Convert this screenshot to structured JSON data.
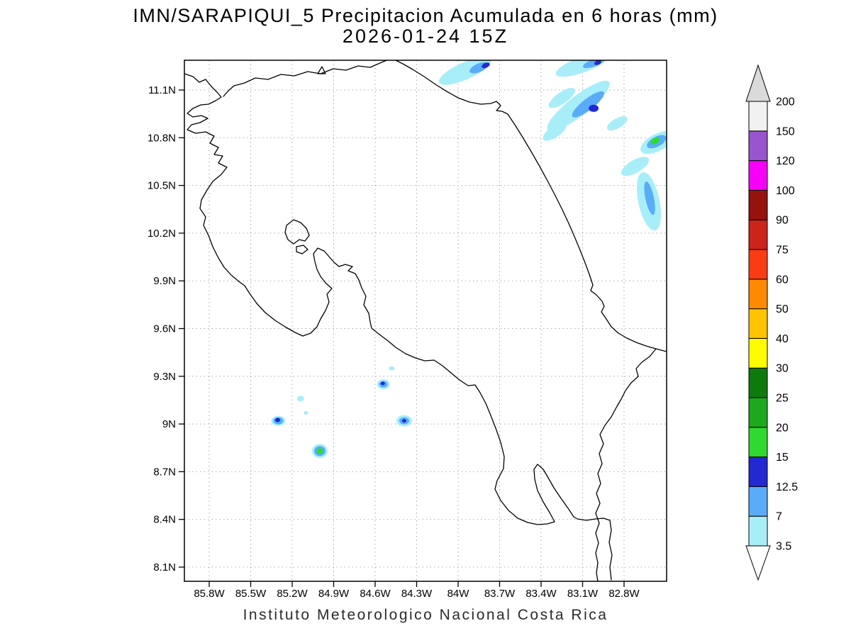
{
  "footer": "Instituto Meteorologico Nacional Costa Rica",
  "chart_data": {
    "type": "heatmap",
    "title": "IMN/SARAPIQUI_5 Precipitacion Acumulada en 6 horas (mm)",
    "subtitle": "2026-01-24 15Z",
    "unit": "mm",
    "grid": true,
    "legend_position": "right",
    "x_ticks": [
      "85.8W",
      "85.5W",
      "85.2W",
      "84.9W",
      "84.6W",
      "84.3W",
      "84W",
      "83.7W",
      "83.4W",
      "83.1W",
      "82.8W"
    ],
    "y_ticks": [
      "11.1N",
      "10.8N",
      "10.5N",
      "10.2N",
      "9.9N",
      "9.6N",
      "9.3N",
      "9N",
      "8.7N",
      "8.4N",
      "8.1N"
    ],
    "colorbar": {
      "values": [
        "3.5",
        "7",
        "12.5",
        "15",
        "20",
        "25",
        "30",
        "40",
        "50",
        "60",
        "75",
        "90",
        "100",
        "120",
        "150",
        "200"
      ],
      "segment_colors": [
        "#A8EEF8",
        "#58ACF8",
        "#2228D2",
        "#2FD92F",
        "#1EA81E",
        "#0E7A0E",
        "#FFFB00",
        "#FFC400",
        "#FF8A00",
        "#FA3C14",
        "#CC231A",
        "#96120E",
        "#F800F8",
        "#9955CE",
        "#F1F1F1"
      ],
      "above_color": "#DADADA",
      "below_color": "#FFFFFF"
    },
    "cells": [
      {
        "lat": 11.22,
        "lon_w": 83.95,
        "rx": 40,
        "ry": 12,
        "rot": -24,
        "level": 0
      },
      {
        "lat": 11.24,
        "lon_w": 83.85,
        "rx": 14,
        "ry": 6,
        "rot": -24,
        "level": 1
      },
      {
        "lat": 11.255,
        "lon_w": 83.8,
        "rx": 6,
        "ry": 3.5,
        "rot": -24,
        "level": 2
      },
      {
        "lat": 11.26,
        "lon_w": 83.1,
        "rx": 40,
        "ry": 11,
        "rot": -20,
        "level": 0
      },
      {
        "lat": 11.27,
        "lon_w": 83.02,
        "rx": 16,
        "ry": 5,
        "rot": -20,
        "level": 1
      },
      {
        "lat": 11.272,
        "lon_w": 82.99,
        "rx": 5,
        "ry": 3,
        "rot": -20,
        "level": 2
      },
      {
        "lat": 11.05,
        "lon_w": 83.25,
        "rx": 22,
        "ry": 8,
        "rot": -35,
        "level": 0
      },
      {
        "lat": 11.0,
        "lon_w": 83.13,
        "rx": 55,
        "ry": 14,
        "rot": -38,
        "level": 0
      },
      {
        "lat": 11.01,
        "lon_w": 83.06,
        "rx": 28,
        "ry": 8,
        "rot": -38,
        "level": 1
      },
      {
        "lat": 10.985,
        "lon_w": 83.02,
        "rx": 7,
        "ry": 5,
        "rot": 0,
        "level": 2
      },
      {
        "lat": 10.84,
        "lon_w": 83.3,
        "rx": 20,
        "ry": 8,
        "rot": -35,
        "level": 0
      },
      {
        "lat": 10.89,
        "lon_w": 82.85,
        "rx": 16,
        "ry": 7,
        "rot": -30,
        "level": 0
      },
      {
        "lat": 10.77,
        "lon_w": 82.56,
        "rx": 26,
        "ry": 12,
        "rot": -28,
        "level": 0
      },
      {
        "lat": 10.775,
        "lon_w": 82.565,
        "rx": 15,
        "ry": 7,
        "rot": -28,
        "level": 1
      },
      {
        "lat": 10.78,
        "lon_w": 82.575,
        "rx": 7,
        "ry": 4,
        "rot": -28,
        "level": 3
      },
      {
        "lat": 10.62,
        "lon_w": 82.72,
        "rx": 22,
        "ry": 9,
        "rot": -30,
        "level": 0
      },
      {
        "lat": 10.4,
        "lon_w": 82.62,
        "rx": 15,
        "ry": 42,
        "rot": -12,
        "level": 0
      },
      {
        "lat": 10.42,
        "lon_w": 82.615,
        "rx": 6,
        "ry": 24,
        "rot": -12,
        "level": 1
      },
      {
        "lat": 9.02,
        "lon_w": 85.3,
        "rx": 10,
        "ry": 7,
        "rot": 0,
        "level": 0
      },
      {
        "lat": 9.02,
        "lon_w": 85.3,
        "rx": 7,
        "ry": 5,
        "rot": 0,
        "level": 1
      },
      {
        "lat": 9.025,
        "lon_w": 85.305,
        "rx": 3.5,
        "ry": 3,
        "rot": 0,
        "level": 2
      },
      {
        "lat": 9.16,
        "lon_w": 85.14,
        "rx": 5,
        "ry": 4,
        "rot": 0,
        "level": 0
      },
      {
        "lat": 9.07,
        "lon_w": 85.1,
        "rx": 3,
        "ry": 2.5,
        "rot": 0,
        "level": 0
      },
      {
        "lat": 9.25,
        "lon_w": 84.54,
        "rx": 9,
        "ry": 7,
        "rot": 0,
        "level": 0
      },
      {
        "lat": 9.25,
        "lon_w": 84.54,
        "rx": 6,
        "ry": 4.5,
        "rot": 0,
        "level": 1
      },
      {
        "lat": 9.255,
        "lon_w": 84.545,
        "rx": 3,
        "ry": 2.5,
        "rot": 0,
        "level": 2
      },
      {
        "lat": 9.35,
        "lon_w": 84.48,
        "rx": 4,
        "ry": 3,
        "rot": 0,
        "level": 0
      },
      {
        "lat": 9.02,
        "lon_w": 84.39,
        "rx": 11,
        "ry": 8,
        "rot": 0,
        "level": 0
      },
      {
        "lat": 9.02,
        "lon_w": 84.39,
        "rx": 7,
        "ry": 5,
        "rot": 0,
        "level": 1
      },
      {
        "lat": 9.02,
        "lon_w": 84.39,
        "rx": 3,
        "ry": 2.5,
        "rot": 0,
        "level": 2
      },
      {
        "lat": 8.83,
        "lon_w": 85.0,
        "rx": 11,
        "ry": 10,
        "rot": 0,
        "level": 0
      },
      {
        "lat": 8.83,
        "lon_w": 85.0,
        "rx": 8,
        "ry": 7,
        "rot": 0,
        "level": 1
      },
      {
        "lat": 8.83,
        "lon_w": 85.0,
        "rx": 4.5,
        "ry": 4,
        "rot": 0,
        "level": 3
      }
    ]
  }
}
